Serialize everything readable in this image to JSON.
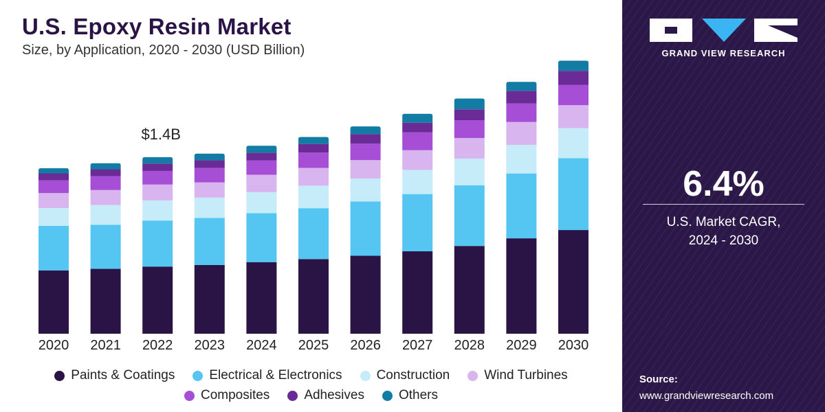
{
  "header": {
    "title": "U.S. Epoxy Resin Market",
    "subtitle": "Size, by Application, 2020 - 2030 (USD Billion)"
  },
  "sidebar": {
    "brand": "GRAND VIEW RESEARCH",
    "cagr_value": "6.4%",
    "cagr_label_line1": "U.S. Market CAGR,",
    "cagr_label_line2": "2024 - 2030",
    "source_label": "Source:",
    "source_url": "www.grandviewresearch.com",
    "colors": {
      "background": "#2c1848",
      "logo_accent": "#3ab4f2"
    }
  },
  "chart_data": {
    "type": "bar",
    "stacked": true,
    "categories": [
      "2020",
      "2021",
      "2022",
      "2023",
      "2024",
      "2025",
      "2026",
      "2027",
      "2028",
      "2029",
      "2030"
    ],
    "series": [
      {
        "name": "Paints & Coatings",
        "color": "#2a1446",
        "values": [
          0.498,
          0.51,
          0.528,
          0.54,
          0.563,
          0.587,
          0.613,
          0.648,
          0.69,
          0.75,
          0.815
        ]
      },
      {
        "name": "Electrical & Electronics",
        "color": "#55c5f2",
        "values": [
          0.35,
          0.347,
          0.362,
          0.37,
          0.385,
          0.4,
          0.427,
          0.45,
          0.477,
          0.51,
          0.565
        ]
      },
      {
        "name": "Construction",
        "color": "#c6ecfa",
        "values": [
          0.14,
          0.155,
          0.158,
          0.16,
          0.165,
          0.177,
          0.18,
          0.19,
          0.21,
          0.225,
          0.237
        ]
      },
      {
        "name": "Wind Turbines",
        "color": "#d8b5ee",
        "values": [
          0.118,
          0.118,
          0.125,
          0.12,
          0.137,
          0.14,
          0.145,
          0.155,
          0.162,
          0.18,
          0.18
        ]
      },
      {
        "name": "Composites",
        "color": "#a64ed6",
        "values": [
          0.1,
          0.108,
          0.107,
          0.113,
          0.113,
          0.12,
          0.13,
          0.14,
          0.14,
          0.145,
          0.16
        ]
      },
      {
        "name": "Adhesives",
        "color": "#6a2b96",
        "values": [
          0.055,
          0.055,
          0.058,
          0.06,
          0.06,
          0.068,
          0.075,
          0.076,
          0.085,
          0.1,
          0.11
        ]
      },
      {
        "name": "Others",
        "color": "#137ca4",
        "values": [
          0.04,
          0.047,
          0.05,
          0.053,
          0.055,
          0.055,
          0.06,
          0.07,
          0.085,
          0.07,
          0.08
        ]
      }
    ],
    "annotations": [
      {
        "category": "2022",
        "text": "$1.4B"
      }
    ],
    "ylim": [
      0,
      2.3
    ],
    "grid": false,
    "legend": "bottom"
  }
}
